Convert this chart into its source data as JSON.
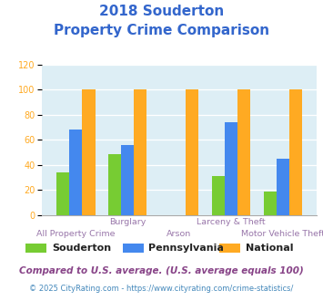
{
  "title_line1": "2018 Souderton",
  "title_line2": "Property Crime Comparison",
  "title_color": "#3366cc",
  "groups": [
    {
      "souderton": 34,
      "pennsylvania": 68,
      "national": 100
    },
    {
      "souderton": 49,
      "pennsylvania": 56,
      "national": 100
    },
    {
      "souderton": 0,
      "pennsylvania": 0,
      "national": 100
    },
    {
      "souderton": 31,
      "pennsylvania": 74,
      "national": 100
    },
    {
      "souderton": 19,
      "pennsylvania": 45,
      "national": 100
    }
  ],
  "x_labels_row1": [
    "",
    "Burglary",
    "",
    "Larceny & Theft",
    ""
  ],
  "x_labels_row2": [
    "All Property Crime",
    "",
    "Arson",
    "",
    "Motor Vehicle Theft"
  ],
  "colors": {
    "souderton": "#77cc33",
    "pennsylvania": "#4488ee",
    "national": "#ffaa22"
  },
  "ylim": [
    0,
    120
  ],
  "yticks": [
    0,
    20,
    40,
    60,
    80,
    100,
    120
  ],
  "plot_bg_color": "#ddeef5",
  "grid_color": "#ffffff",
  "legend_labels": [
    "Souderton",
    "Pennsylvania",
    "National"
  ],
  "legend_text_color": "#222222",
  "ytick_color": "#ffaa22",
  "xlabel_color": "#9977aa",
  "footnote1": "Compared to U.S. average. (U.S. average equals 100)",
  "footnote2": "© 2025 CityRating.com - https://www.cityrating.com/crime-statistics/",
  "footnote1_color": "#884488",
  "footnote2_color": "#4488bb"
}
